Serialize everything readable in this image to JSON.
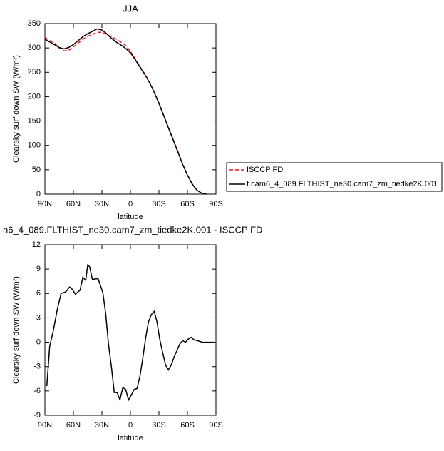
{
  "chart_data": [
    {
      "type": "line",
      "title": "JJA",
      "xlabel": "latitude",
      "ylabel": "Clearsky surf down SW (W/m²)",
      "x": [
        90,
        85,
        80,
        75,
        70,
        65,
        60,
        55,
        50,
        45,
        40,
        35,
        30,
        25,
        20,
        15,
        10,
        5,
        0,
        -5,
        -10,
        -15,
        -20,
        -25,
        -30,
        -35,
        -40,
        -45,
        -50,
        -55,
        -60,
        -65,
        -70,
        -75,
        -80,
        -85,
        -90
      ],
      "series": [
        {
          "name": "ISCCP FD",
          "color": "#e8171e",
          "dash": true,
          "values": [
            322,
            315,
            310,
            300,
            294,
            295,
            302,
            310,
            318,
            324,
            328,
            332,
            332,
            328,
            323,
            318,
            312,
            305,
            293,
            278,
            262,
            247,
            230,
            210,
            187,
            162,
            137,
            112,
            87,
            62,
            40,
            21,
            8,
            2,
            0,
            null,
            null
          ]
        },
        {
          "name": "f.cam6_4_089.FLTHIST_ne30.cam7_zm_tiedke2K.001",
          "color": "#000000",
          "dash": false,
          "values": [
            318,
            312,
            307,
            301,
            298,
            301,
            307,
            315,
            323,
            329,
            334,
            339,
            337,
            329,
            320,
            312,
            306,
            299,
            290,
            276,
            261,
            246,
            229,
            209,
            186,
            161,
            136,
            111,
            86,
            61,
            39,
            21,
            8,
            2,
            0,
            null,
            null
          ]
        }
      ],
      "xlim": [
        90,
        -90
      ],
      "xticks": [
        {
          "value": 90,
          "label": "90N"
        },
        {
          "value": 60,
          "label": "60N"
        },
        {
          "value": 30,
          "label": "30N"
        },
        0,
        {
          "value": -30,
          "label": "30S"
        },
        {
          "value": -60,
          "label": "60S"
        },
        {
          "value": -90,
          "label": "90S"
        }
      ],
      "ylim": [
        0,
        350
      ],
      "yticks": [
        0,
        50,
        100,
        150,
        200,
        250,
        300,
        350
      ],
      "legend": "right"
    },
    {
      "type": "line",
      "title": "n6_4_089.FLTHIST_ne30.cam7_zm_tiedke2K.001 - ISCCP FD",
      "xlabel": "latitude",
      "ylabel": "Clearsky surf down SW (W/m²)",
      "x": [
        88,
        85,
        81,
        77,
        73,
        68,
        64,
        61,
        58,
        53,
        50,
        47,
        45,
        43,
        40,
        37,
        34,
        29,
        26,
        23,
        20,
        17,
        14,
        11,
        8,
        5,
        2,
        -1,
        -4,
        -7,
        -10,
        -13,
        -16,
        -19,
        -22,
        -25,
        -28,
        -31,
        -34,
        -37,
        -40,
        -43,
        -46,
        -49,
        -52,
        -55,
        -58,
        -61,
        -64,
        -67,
        -70,
        -73,
        -76,
        -80,
        -88
      ],
      "series": [
        {
          "color": "#000000",
          "dash": false,
          "values": [
            -5.4,
            -0.5,
            1.5,
            4,
            6,
            6.2,
            6.8,
            6.5,
            5.9,
            6.4,
            8,
            7.6,
            9.5,
            9.3,
            7.7,
            7.8,
            7.8,
            6.1,
            3.5,
            -0.3,
            -3,
            -6.2,
            -6.2,
            -7.1,
            -5.6,
            -5.8,
            -7.1,
            -6.5,
            -5.8,
            -5.7,
            -4.2,
            -2,
            0.5,
            2.5,
            3.4,
            3.8,
            2.5,
            0.3,
            -1.3,
            -2.8,
            -3.4,
            -2.8,
            -1.8,
            -1,
            -0.2,
            0.2,
            0,
            0.4,
            0.6,
            0.3,
            0.2,
            0.1,
            0,
            0,
            0
          ]
        }
      ],
      "xlim": [
        90,
        -90
      ],
      "xticks": [
        {
          "value": 90,
          "label": "90N"
        },
        {
          "value": 60,
          "label": "60N"
        },
        {
          "value": 30,
          "label": "30N"
        },
        0,
        {
          "value": -30,
          "label": "30S"
        },
        {
          "value": -60,
          "label": "60S"
        },
        {
          "value": -90,
          "label": "90S"
        }
      ],
      "ylim": [
        -9,
        12
      ],
      "yticks": [
        -9,
        -6,
        -3,
        0,
        3,
        6,
        9,
        12
      ]
    }
  ]
}
